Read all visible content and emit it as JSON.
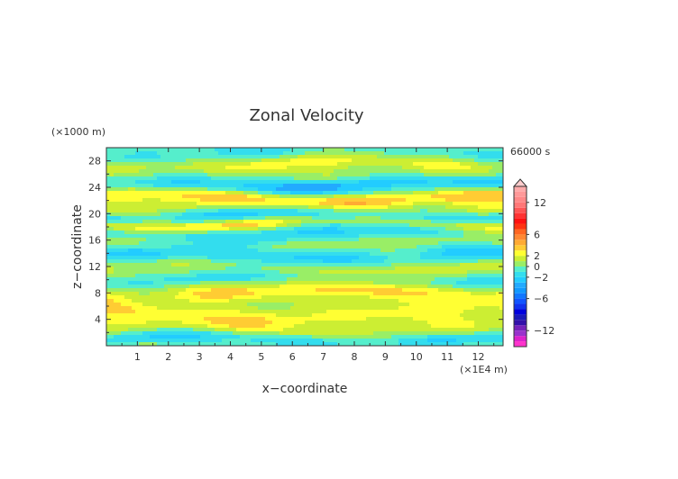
{
  "chart_data": {
    "type": "heatmap",
    "title": "Zonal Velocity",
    "xlabel": "x−coordinate",
    "ylabel": "z−coordinate",
    "x_unit": "(×1E4 m)",
    "y_unit": "(×1000 m)",
    "time_label": "66000 s",
    "xlim": [
      0,
      12.8
    ],
    "ylim": [
      0,
      30
    ],
    "x_ticks": [
      "1",
      "2",
      "3",
      "4",
      "5",
      "6",
      "7",
      "8",
      "9",
      "10",
      "11",
      "12"
    ],
    "y_ticks": [
      "4",
      "8",
      "12",
      "16",
      "20",
      "24",
      "28"
    ],
    "colorbar": {
      "labels": [
        "12",
        "6",
        "2",
        "0",
        "−2",
        "−6",
        "−12"
      ],
      "levels": [
        -15,
        -14,
        -13,
        -12,
        -11,
        -10,
        -9,
        -8,
        -7,
        -6,
        -5,
        -4,
        -3,
        -2,
        -1,
        0,
        1,
        2,
        3,
        4,
        5,
        6,
        7,
        8,
        9,
        10,
        11,
        12,
        13,
        14,
        15
      ],
      "colors": [
        "#ff33cc",
        "#dd22cc",
        "#9933cc",
        "#7722bb",
        "#3311aa",
        "#1a1ab8",
        "#0000dd",
        "#1133ee",
        "#1155ff",
        "#1177ff",
        "#1199ff",
        "#22aaff",
        "#22ccff",
        "#33ddee",
        "#55eecc",
        "#99ee66",
        "#ccee33",
        "#ffff33",
        "#ffcc33",
        "#ffaa33",
        "#ff8833",
        "#ff6622",
        "#ff3311",
        "#ff1111",
        "#ff3333",
        "#ff5555",
        "#ff7777",
        "#ff8888",
        "#ff9999",
        "#ffaaaa"
      ],
      "extend": "max"
    },
    "bands": [
      {
        "z": 1.0,
        "value": -1.5
      },
      {
        "z": 2.5,
        "value": 1.0
      },
      {
        "z": 4.5,
        "value": 2.0
      },
      {
        "z": 6.0,
        "value": 0.5
      },
      {
        "z": 8.0,
        "value": 2.5
      },
      {
        "z": 10.0,
        "value": -1.0
      },
      {
        "z": 12.0,
        "value": 1.5
      },
      {
        "z": 13.5,
        "value": -2.0
      },
      {
        "z": 15.5,
        "value": 1.0
      },
      {
        "z": 17.0,
        "value": -1.5
      },
      {
        "z": 18.5,
        "value": 3.0
      },
      {
        "z": 19.5,
        "value": -2.5
      },
      {
        "z": 21.0,
        "value": 1.5
      },
      {
        "z": 22.5,
        "value": 2.5
      },
      {
        "z": 24.5,
        "value": -2.5
      },
      {
        "z": 25.5,
        "value": 1.0
      },
      {
        "z": 27.5,
        "value": 2.0
      },
      {
        "z": 29.0,
        "value": -1.0
      }
    ]
  }
}
